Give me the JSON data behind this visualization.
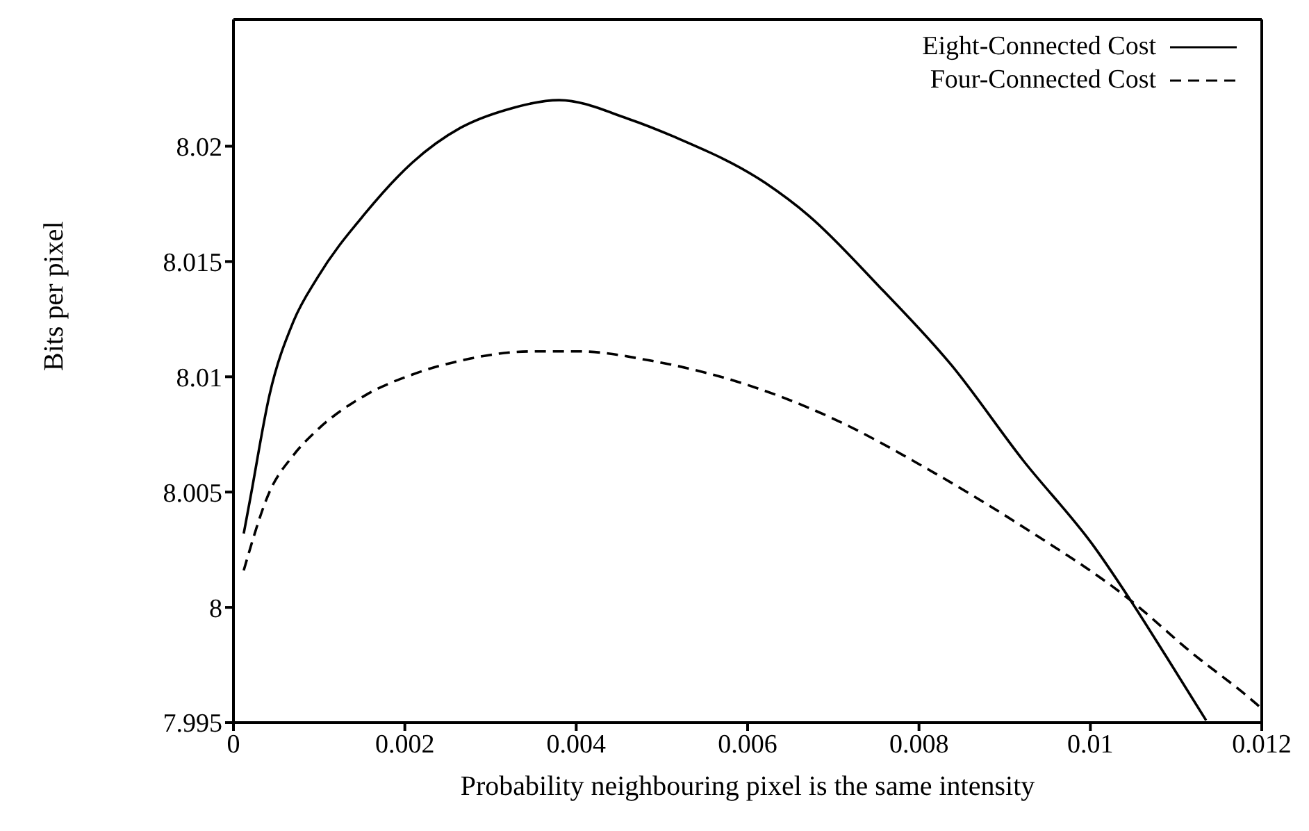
{
  "chart_data": {
    "type": "line",
    "xlabel": "Probability neighbouring pixel is the same intensity",
    "ylabel": "Bits per pixel",
    "xlim": [
      0,
      0.012
    ],
    "xticks": [
      0,
      0.002,
      0.004,
      0.006,
      0.008,
      0.01,
      0.012
    ],
    "ylim": [
      7.995,
      8.0255
    ],
    "yticks": [
      7.995,
      8,
      8.005,
      8.01,
      8.015,
      8.02
    ],
    "legend": "top right",
    "marker": "none",
    "series": [
      {
        "name": "Eight-Connected Cost",
        "color": "#000000",
        "line_style": "solid",
        "x": [
          0.00012,
          0.0002,
          0.00042,
          0.0007,
          0.00098,
          0.00154,
          0.00209,
          0.00265,
          0.0032,
          0.0038,
          0.0046,
          0.00515,
          0.00621,
          0.00671,
          0.00754,
          0.00838,
          0.00921,
          0.01005,
          0.01047,
          0.01088,
          0.01135
        ],
        "values": [
          8.0032,
          8.0048,
          8.0092,
          8.0124,
          8.0143,
          8.0171,
          8.0193,
          8.0208,
          8.0216,
          8.022,
          8.0212,
          8.0204,
          8.0184,
          8.017,
          8.0139,
          8.0105,
          8.0064,
          8.0026,
          8.0003,
          7.9979,
          7.9951
        ]
      },
      {
        "name": "Four-Connected Cost",
        "color": "#000000",
        "line_style": "dashed",
        "x": [
          0.00012,
          0.00042,
          0.0007,
          0.00098,
          0.00154,
          0.00209,
          0.00265,
          0.00348,
          0.00404,
          0.00487,
          0.00587,
          0.00699,
          0.0081,
          0.00921,
          0.01047,
          0.01116,
          0.01194,
          0.012
        ],
        "values": [
          8.0016,
          8.005,
          8.0066,
          8.0077,
          8.0092,
          8.0101,
          8.0107,
          8.0111,
          8.0111,
          8.0107,
          8.0098,
          8.0082,
          8.006,
          8.0035,
          8.0003,
          7.9981,
          7.9958,
          7.9956
        ]
      }
    ]
  }
}
